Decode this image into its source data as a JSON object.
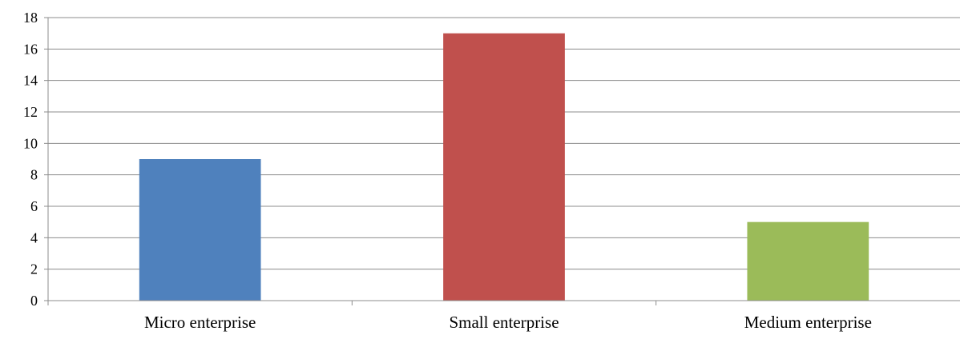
{
  "chart_data": {
    "type": "bar",
    "categories": [
      "Micro enterprise",
      "Small enterprise",
      "Medium enterprise"
    ],
    "values": [
      9,
      17,
      5
    ],
    "colors": [
      "#4F81BD",
      "#C0504D",
      "#9BBB59"
    ],
    "title": "",
    "xlabel": "",
    "ylabel": "",
    "ylim": [
      0,
      18
    ],
    "yticks": [
      "0",
      "2",
      "4",
      "6",
      "8",
      "10",
      "12",
      "14",
      "16",
      "18"
    ],
    "grid": true,
    "legend": "none"
  }
}
